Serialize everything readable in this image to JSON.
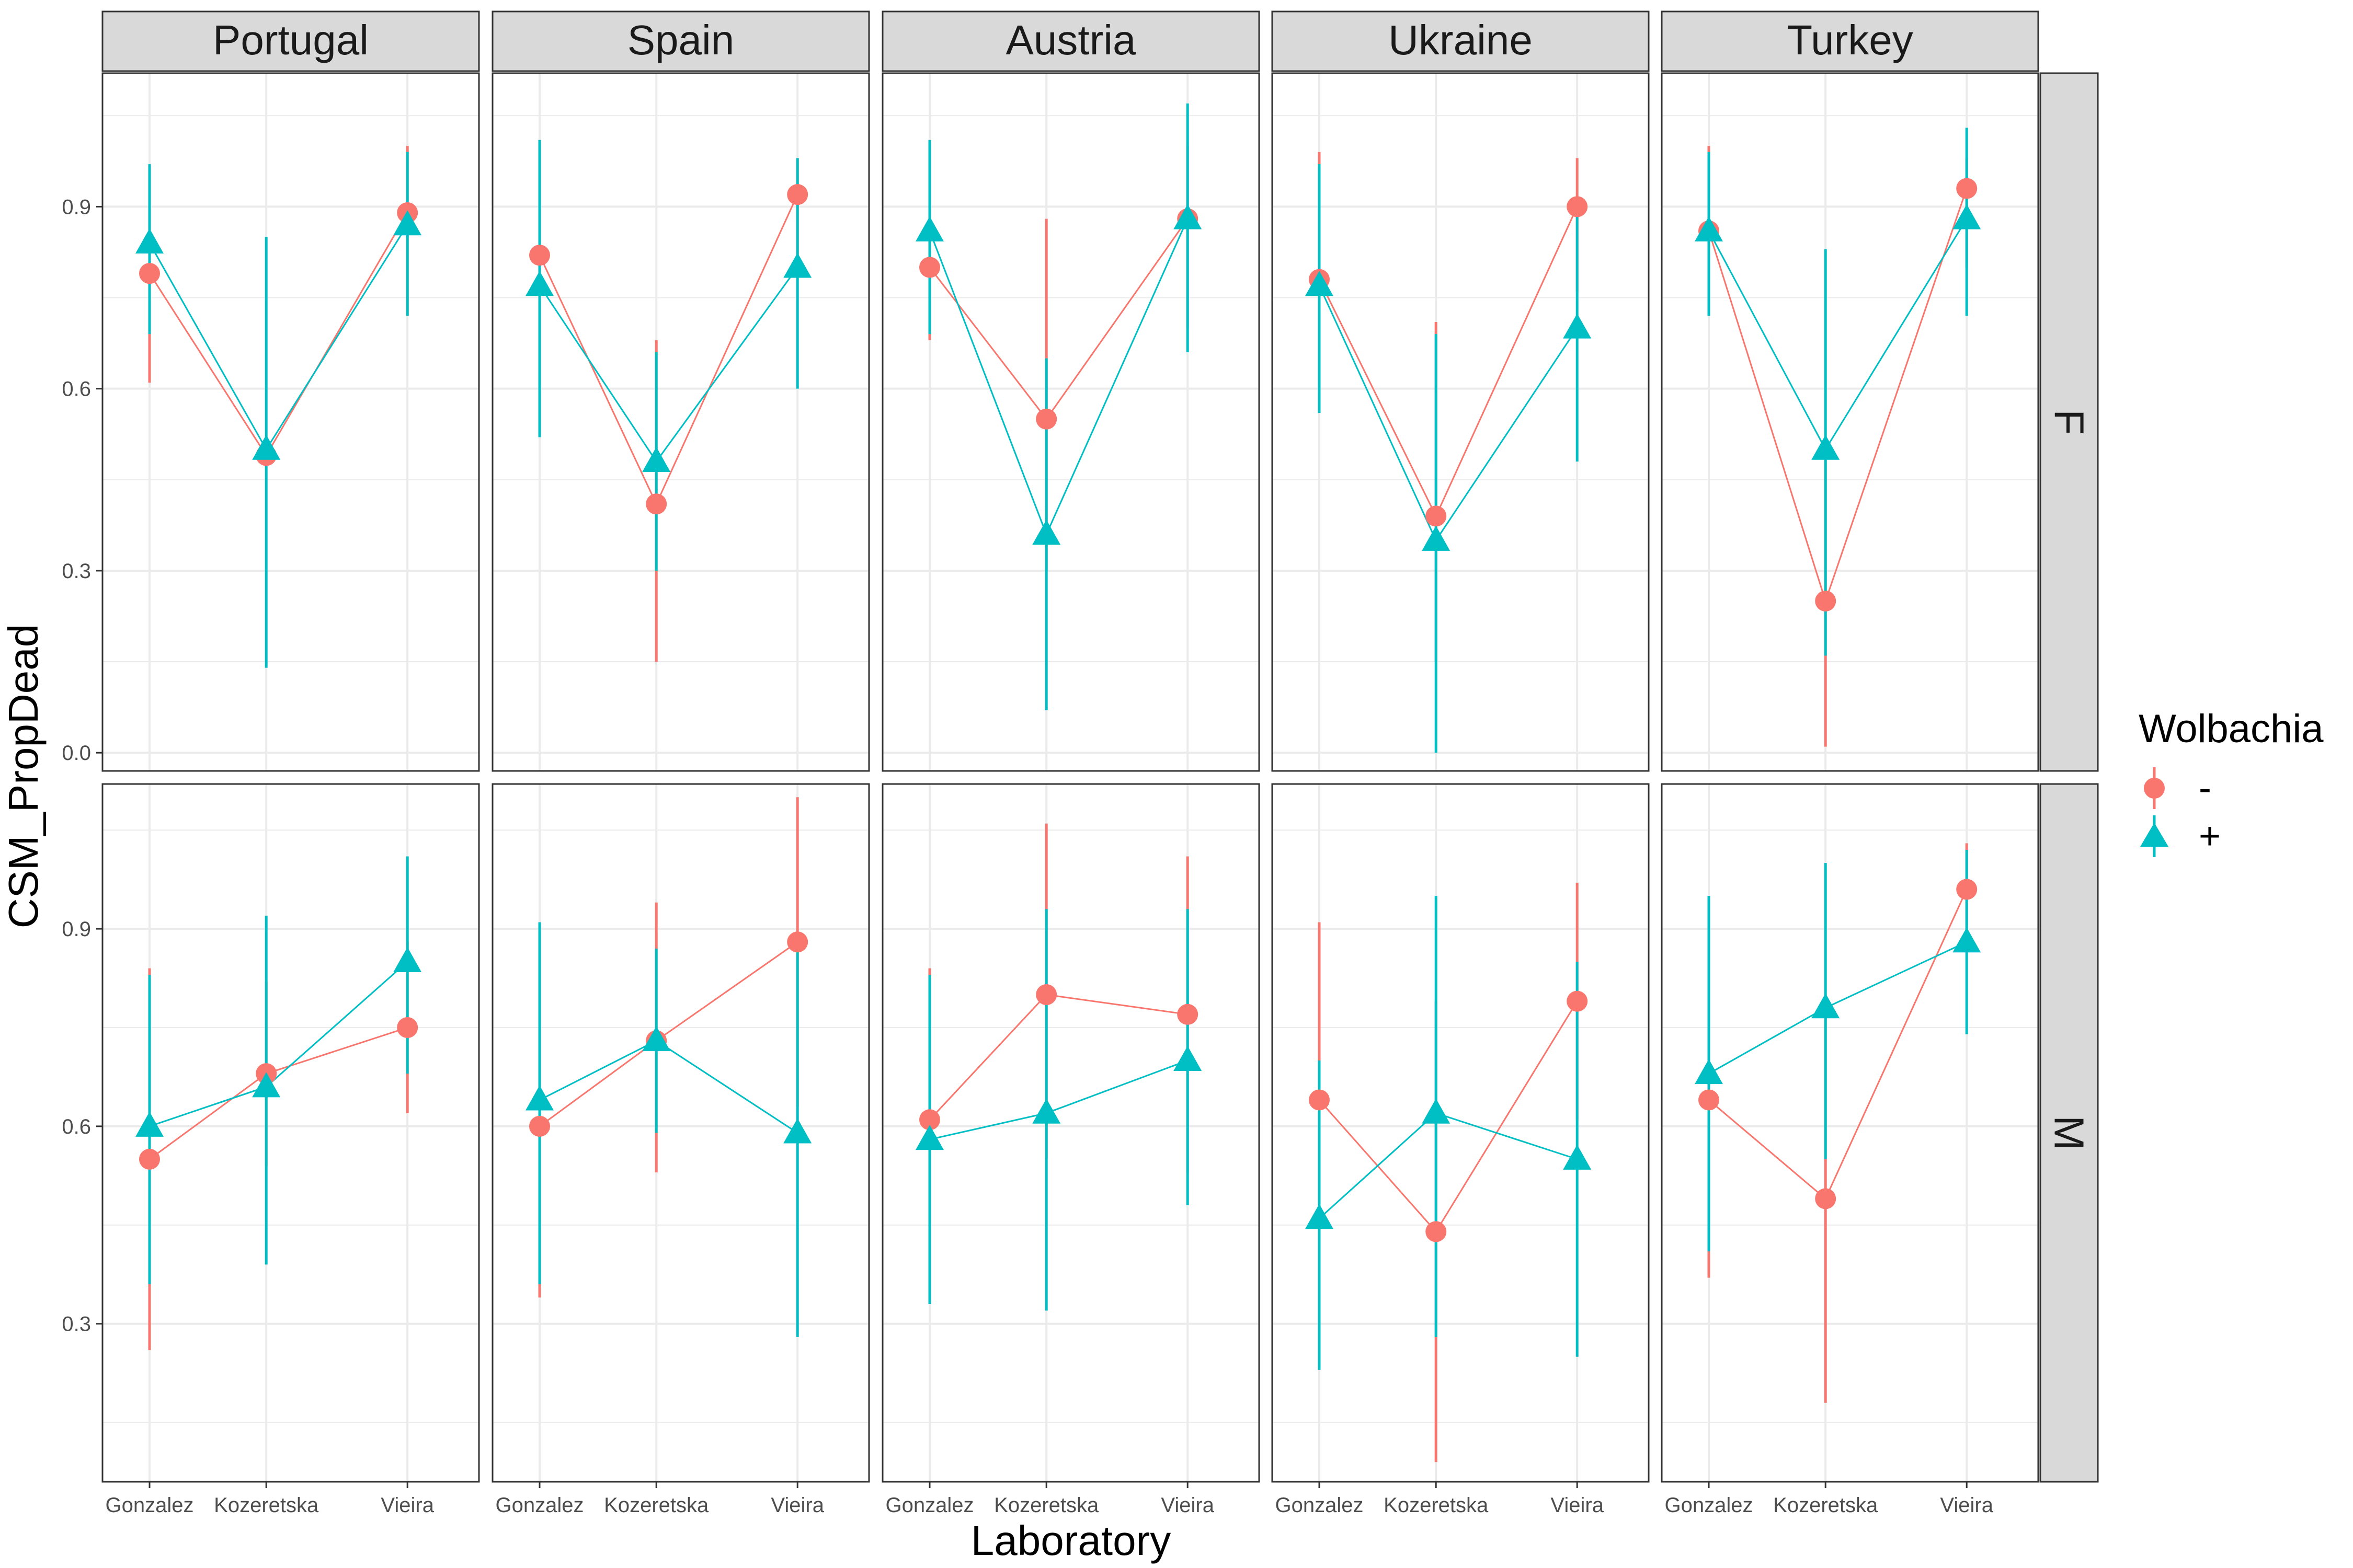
{
  "chart_data": {
    "type": "line",
    "xlabel": "Laboratory",
    "ylabel": "CSM_PropDead",
    "categories": [
      "Gonzalez",
      "Kozeretska",
      "Vieira"
    ],
    "y_ticks": [
      "0.0",
      "0.3",
      "0.6",
      "0.9"
    ],
    "grid": true,
    "legend": {
      "title": "Wolbachia",
      "position": "right",
      "entries": [
        {
          "label": "-",
          "color": "#F8766D",
          "shape": "circle"
        },
        {
          "label": "+",
          "color": "#00BFC4",
          "shape": "triangle"
        }
      ]
    },
    "columns": [
      "Portugal",
      "Spain",
      "Austria",
      "Ukraine",
      "Turkey"
    ],
    "rows": [
      {
        "label": "F",
        "ylim": [
          -0.03,
          1.12
        ],
        "ticks": [
          0.0,
          0.3,
          0.6,
          0.9
        ],
        "tick_labels": [
          "0.0",
          "0.3",
          "0.6",
          "0.9"
        ]
      },
      {
        "label": "M",
        "ylim": [
          0.06,
          1.12
        ],
        "ticks": [
          0.3,
          0.6,
          0.9
        ],
        "tick_labels": [
          "0.3",
          "0.6",
          "0.9"
        ]
      }
    ],
    "panels": [
      {
        "country": "Portugal",
        "sex": "F",
        "series": [
          {
            "name": "-",
            "values": [
              0.79,
              0.49,
              0.89
            ],
            "lower": [
              0.61,
              0.49,
              0.72
            ],
            "upper": [
              0.94,
              0.49,
              1.0
            ]
          },
          {
            "name": "+",
            "values": [
              0.84,
              0.5,
              0.87
            ],
            "lower": [
              0.69,
              0.14,
              0.72
            ],
            "upper": [
              0.97,
              0.85,
              0.99
            ]
          }
        ]
      },
      {
        "country": "Spain",
        "sex": "F",
        "series": [
          {
            "name": "-",
            "values": [
              0.82,
              0.41,
              0.92
            ],
            "lower": [
              0.62,
              0.15,
              0.79
            ],
            "upper": [
              0.95,
              0.68,
              0.98
            ]
          },
          {
            "name": "+",
            "values": [
              0.77,
              0.48,
              0.8
            ],
            "lower": [
              0.52,
              0.3,
              0.6
            ],
            "upper": [
              1.01,
              0.66,
              0.98
            ]
          }
        ]
      },
      {
        "country": "Austria",
        "sex": "F",
        "series": [
          {
            "name": "-",
            "values": [
              0.8,
              0.55,
              0.88
            ],
            "lower": [
              0.68,
              0.3,
              0.7
            ],
            "upper": [
              0.92,
              0.88,
              1.0
            ]
          },
          {
            "name": "+",
            "values": [
              0.86,
              0.36,
              0.88
            ],
            "lower": [
              0.69,
              0.07,
              0.66
            ],
            "upper": [
              1.01,
              0.65,
              1.07
            ]
          }
        ]
      },
      {
        "country": "Ukraine",
        "sex": "F",
        "series": [
          {
            "name": "-",
            "values": [
              0.78,
              0.39,
              0.9
            ],
            "lower": [
              0.62,
              0.15,
              0.76
            ],
            "upper": [
              0.99,
              0.71,
              0.98
            ]
          },
          {
            "name": "+",
            "values": [
              0.77,
              0.35,
              0.7
            ],
            "lower": [
              0.56,
              0.0,
              0.48
            ],
            "upper": [
              0.97,
              0.69,
              0.9
            ]
          }
        ]
      },
      {
        "country": "Turkey",
        "sex": "F",
        "series": [
          {
            "name": "-",
            "values": [
              0.86,
              0.25,
              0.93
            ],
            "lower": [
              0.72,
              0.01,
              0.8
            ],
            "upper": [
              1.0,
              0.49,
              0.98
            ]
          },
          {
            "name": "+",
            "values": [
              0.86,
              0.5,
              0.88
            ],
            "lower": [
              0.72,
              0.16,
              0.72
            ],
            "upper": [
              0.99,
              0.83,
              1.03
            ]
          }
        ]
      },
      {
        "country": "Portugal",
        "sex": "M",
        "series": [
          {
            "name": "-",
            "values": [
              0.55,
              0.68,
              0.75
            ],
            "lower": [
              0.26,
              0.54,
              0.62
            ],
            "upper": [
              0.84,
              0.82,
              0.88
            ]
          },
          {
            "name": "+",
            "values": [
              0.6,
              0.66,
              0.85
            ],
            "lower": [
              0.36,
              0.39,
              0.68
            ],
            "upper": [
              0.83,
              0.92,
              1.01
            ]
          }
        ]
      },
      {
        "country": "Spain",
        "sex": "M",
        "series": [
          {
            "name": "-",
            "values": [
              0.6,
              0.73,
              0.88
            ],
            "lower": [
              0.34,
              0.53,
              0.63
            ],
            "upper": [
              0.86,
              0.94,
              1.1
            ]
          },
          {
            "name": "+",
            "values": [
              0.64,
              0.73,
              0.59
            ],
            "lower": [
              0.36,
              0.59,
              0.28
            ],
            "upper": [
              0.91,
              0.87,
              0.89
            ]
          }
        ]
      },
      {
        "country": "Austria",
        "sex": "M",
        "series": [
          {
            "name": "-",
            "values": [
              0.61,
              0.8,
              0.77
            ],
            "lower": [
              0.39,
              0.55,
              0.53
            ],
            "upper": [
              0.84,
              1.06,
              1.01
            ]
          },
          {
            "name": "+",
            "values": [
              0.58,
              0.62,
              0.7
            ],
            "lower": [
              0.33,
              0.32,
              0.48
            ],
            "upper": [
              0.83,
              0.93,
              0.93
            ]
          }
        ]
      },
      {
        "country": "Ukraine",
        "sex": "M",
        "series": [
          {
            "name": "-",
            "values": [
              0.64,
              0.44,
              0.79
            ],
            "lower": [
              0.38,
              0.09,
              0.61
            ],
            "upper": [
              0.91,
              0.79,
              0.97
            ]
          },
          {
            "name": "+",
            "values": [
              0.46,
              0.62,
              0.55
            ],
            "lower": [
              0.23,
              0.28,
              0.25
            ],
            "upper": [
              0.7,
              0.95,
              0.85
            ]
          }
        ]
      },
      {
        "country": "Turkey",
        "sex": "M",
        "series": [
          {
            "name": "-",
            "values": [
              0.64,
              0.49,
              0.96
            ],
            "lower": [
              0.37,
              0.18,
              0.89
            ],
            "upper": [
              0.9,
              0.8,
              1.03
            ]
          },
          {
            "name": "+",
            "values": [
              0.68,
              0.78,
              0.88
            ],
            "lower": [
              0.41,
              0.55,
              0.74
            ],
            "upper": [
              0.95,
              1.0,
              1.02
            ]
          }
        ]
      }
    ]
  }
}
